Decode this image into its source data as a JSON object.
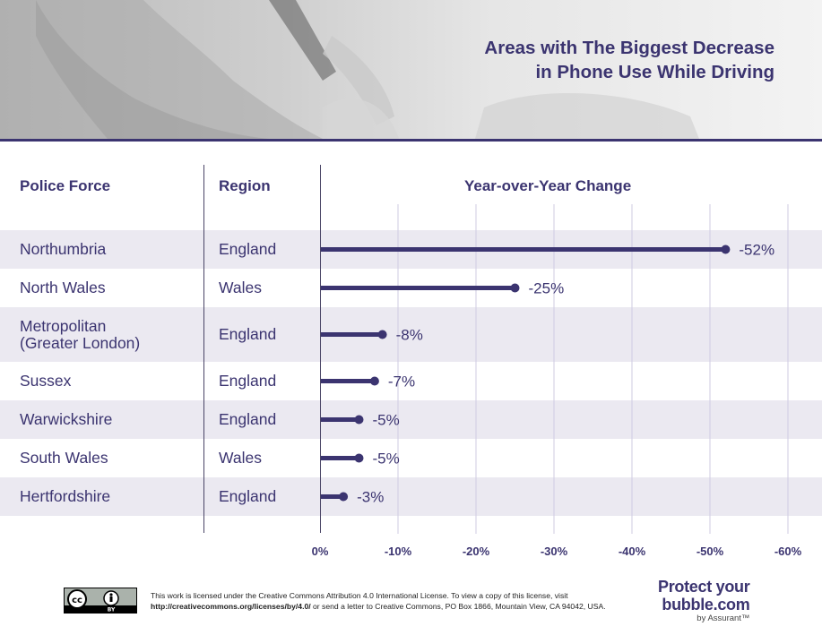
{
  "title": {
    "line1": "Areas with The Biggest Decrease",
    "line2": "in Phone Use While Driving"
  },
  "headers": {
    "police_force": "Police Force",
    "region": "Region",
    "change": "Year-over-Year Change"
  },
  "chart_data": {
    "type": "bar",
    "orientation": "horizontal",
    "title": "Areas with The Biggest Decrease in Phone Use While Driving",
    "xlabel": "Year-over-Year Change",
    "categories": [
      "Northumbria",
      "North Wales",
      "Metropolitan (Greater London)",
      "Sussex",
      "Warwickshire",
      "South Wales",
      "Hertfordshire"
    ],
    "police_force_lines": [
      [
        "Northumbria"
      ],
      [
        "North Wales"
      ],
      [
        "Metropolitan",
        "(Greater London)"
      ],
      [
        "Sussex"
      ],
      [
        "Warwickshire"
      ],
      [
        "South Wales"
      ],
      [
        "Hertfordshire"
      ]
    ],
    "regions": [
      "England",
      "Wales",
      "England",
      "England",
      "England",
      "Wales",
      "England"
    ],
    "values": [
      -52,
      -25,
      -8,
      -7,
      -5,
      -5,
      -3
    ],
    "value_labels": [
      "-52%",
      "-25%",
      "-8%",
      "-7%",
      "-5%",
      "-5%",
      "-3%"
    ],
    "xlim": [
      0,
      -60
    ],
    "ticks": [
      0,
      -10,
      -20,
      -30,
      -40,
      -50,
      -60
    ],
    "tick_labels": [
      "0%",
      "-10%",
      "-20%",
      "-30%",
      "-40%",
      "-50%",
      "-60%"
    ],
    "grid": true,
    "bar_color": "#3b3470",
    "row_band_color": "#ebe9f1"
  },
  "footer": {
    "license_line1": "This work is licensed under the Creative Commons Attribution 4.0 International License. To view a copy of this license, visit",
    "license_url": "http://creativecommons.org/licenses/by/4.0/",
    "license_line2_rest": " or send a letter to Creative Commons, PO Box 1866, Mountain View, CA 94042, USA.",
    "cc_badge_text": "CC BY",
    "brand_line1": "Protect your",
    "brand_line2": "bubble.com",
    "brand_line3": "by Assurant™"
  },
  "colors": {
    "accent": "#3b3470",
    "band": "#ebe9f1"
  }
}
